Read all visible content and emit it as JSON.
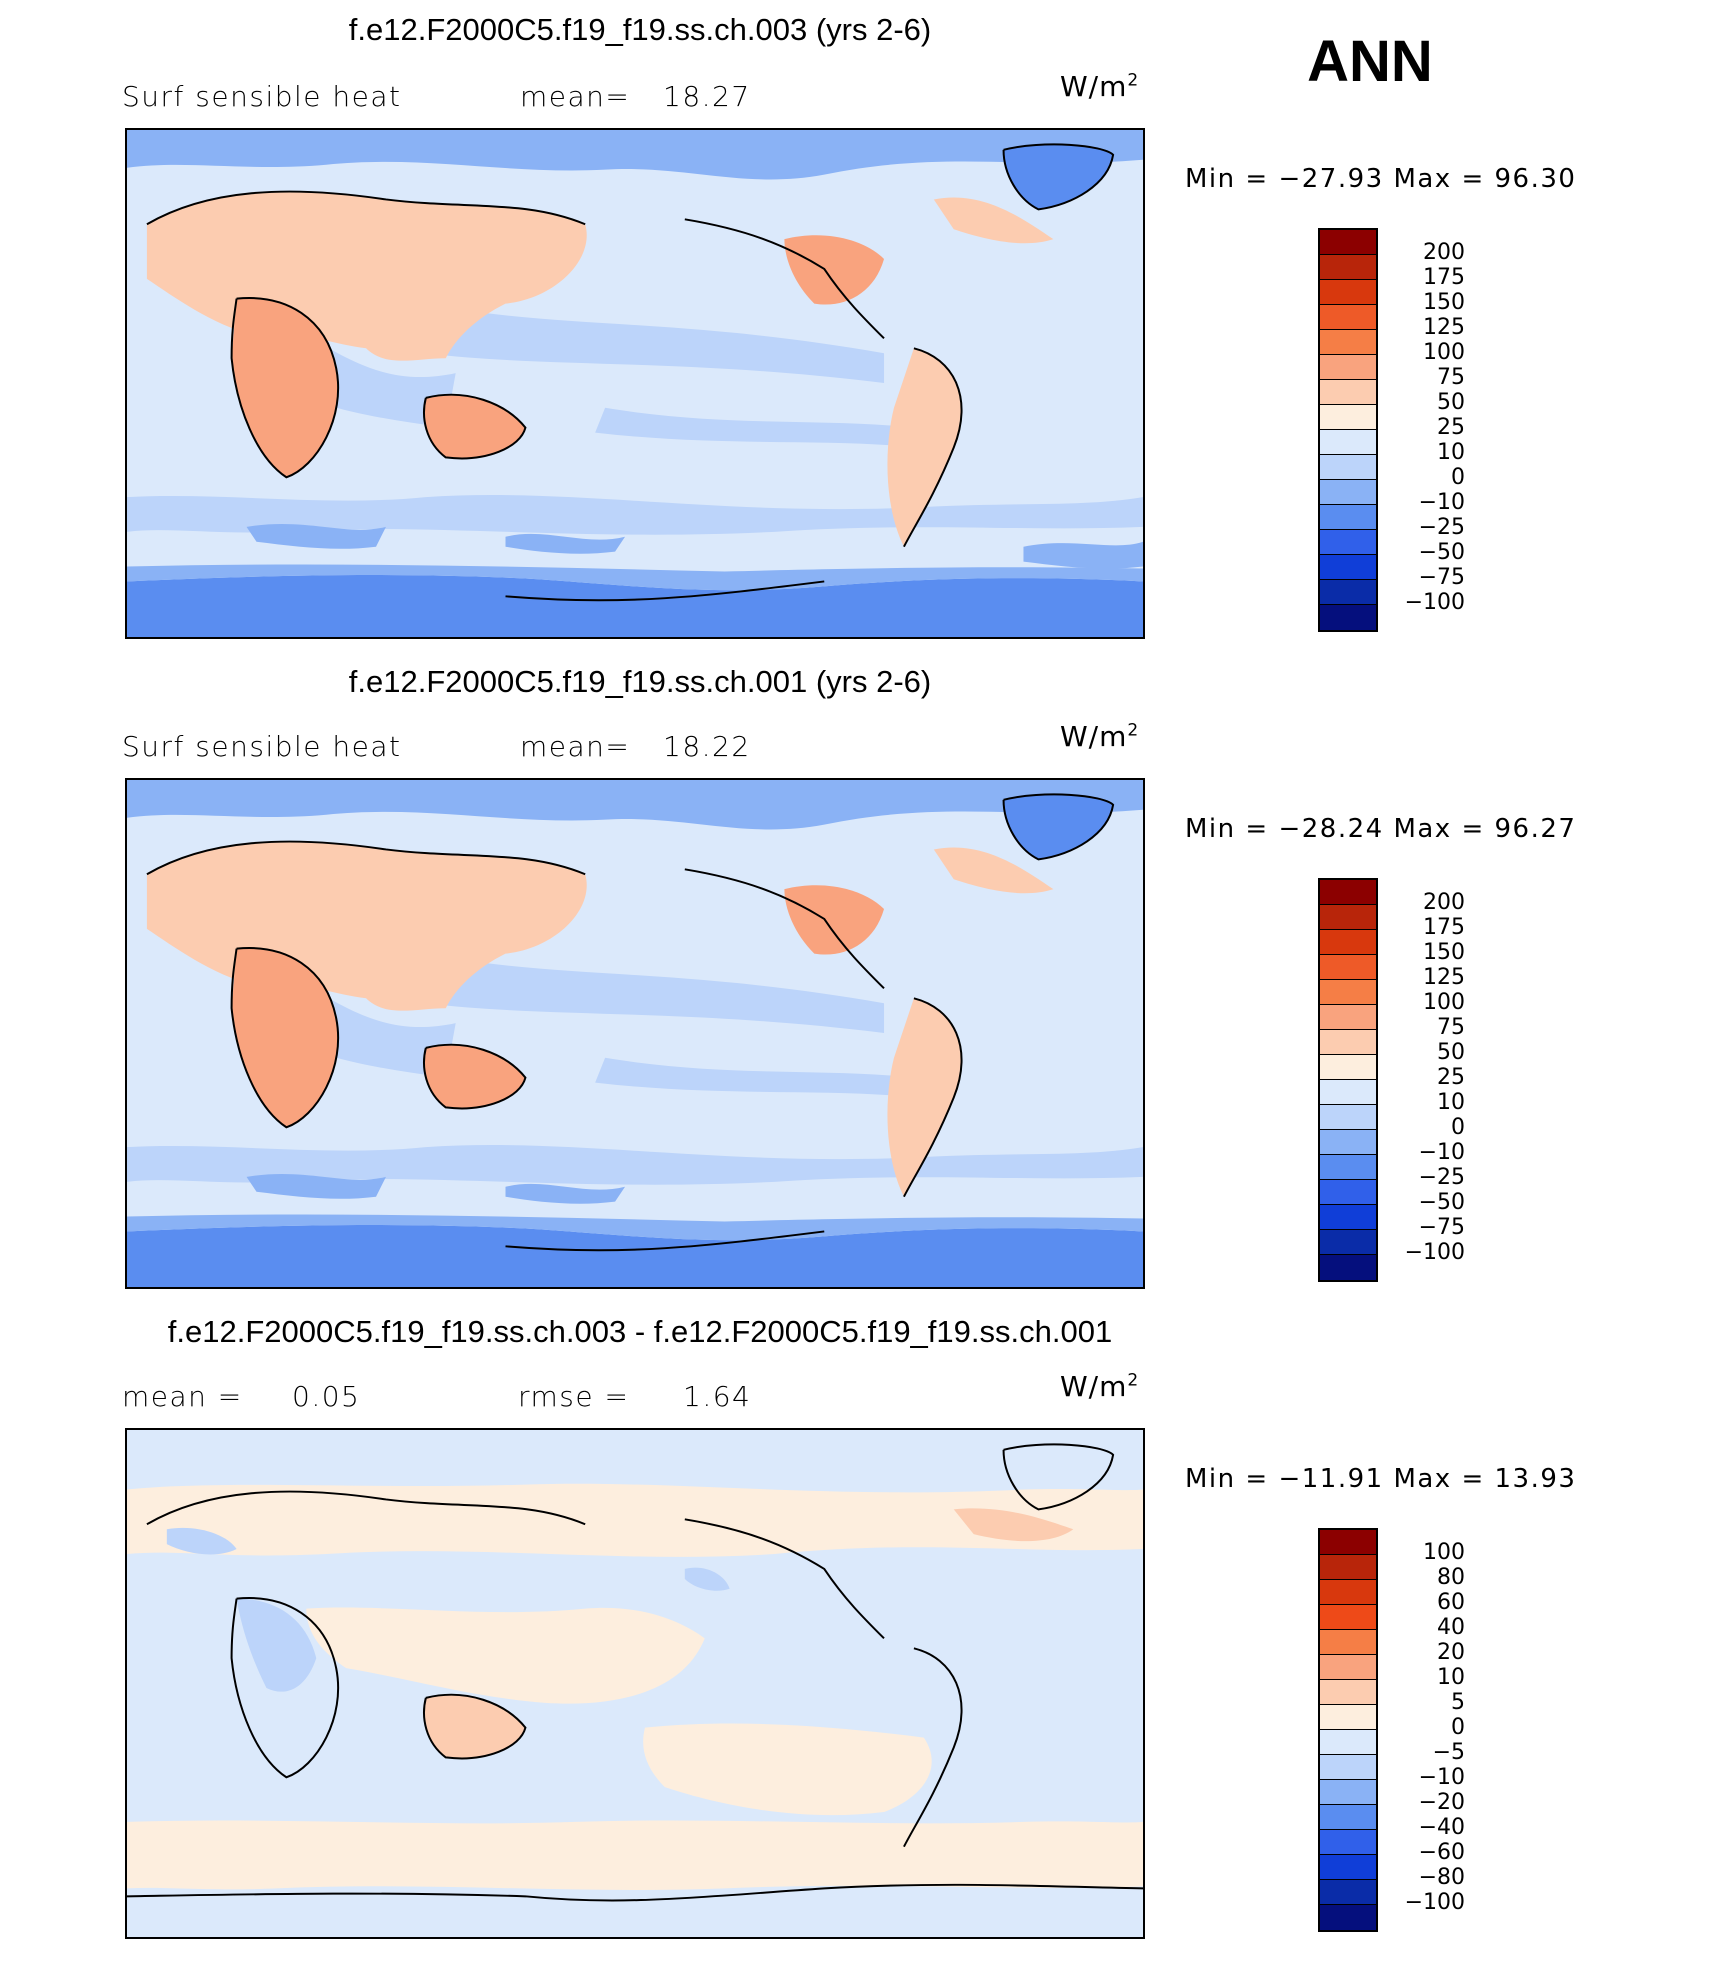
{
  "season": "ANN",
  "panels": [
    {
      "title": "f.e12.F2000C5.f19_f19.ss.ch.003 (yrs 2-6)",
      "left_label": "Surf  sensible  heat",
      "stat_label": "mean=",
      "stat_value": "18.27",
      "stat2_label": "",
      "stat2_value": "",
      "units": "W/m",
      "units_sup": "2",
      "min_label": "Min  =",
      "min_value": "−27.93",
      "max_label": "Max  =",
      "max_value": "96.30",
      "colorbar_levels": [
        "200",
        "175",
        "150",
        "125",
        "100",
        "75",
        "50",
        "25",
        "10",
        "0",
        "−10",
        "−25",
        "−50",
        "−75",
        "−100"
      ],
      "colorbar_colors": [
        "#8c0000",
        "#b8250a",
        "#d8380d",
        "#ee5a28",
        "#f57e46",
        "#f9a37e",
        "#fcccb0",
        "#fdeede",
        "#dbe9fb",
        "#bcd4fa",
        "#8ab2f5",
        "#5a8df0",
        "#3060ea",
        "#103ed8",
        "#0a2ca8",
        "#050f7d"
      ]
    },
    {
      "title": "f.e12.F2000C5.f19_f19.ss.ch.001 (yrs 2-6)",
      "left_label": "Surf  sensible  heat",
      "stat_label": "mean=",
      "stat_value": "18.22",
      "stat2_label": "",
      "stat2_value": "",
      "units": "W/m",
      "units_sup": "2",
      "min_label": "Min  =",
      "min_value": "−28.24",
      "max_label": "Max  =",
      "max_value": "96.27",
      "colorbar_levels": [
        "200",
        "175",
        "150",
        "125",
        "100",
        "75",
        "50",
        "25",
        "10",
        "0",
        "−10",
        "−25",
        "−50",
        "−75",
        "−100"
      ],
      "colorbar_colors": [
        "#8c0000",
        "#b8250a",
        "#d8380d",
        "#ee5a28",
        "#f57e46",
        "#f9a37e",
        "#fcccb0",
        "#fdeede",
        "#dbe9fb",
        "#bcd4fa",
        "#8ab2f5",
        "#5a8df0",
        "#3060ea",
        "#103ed8",
        "#0a2ca8",
        "#050f7d"
      ]
    },
    {
      "title": "f.e12.F2000C5.f19_f19.ss.ch.003 - f.e12.F2000C5.f19_f19.ss.ch.001",
      "left_label": "mean  =",
      "stat_label": "",
      "stat_value": "0.05",
      "stat2_label": "rmse  =",
      "stat2_value": "1.64",
      "units": "W/m",
      "units_sup": "2",
      "min_label": "Min  =",
      "min_value": "−11.91",
      "max_label": "Max  =",
      "max_value": "13.93",
      "colorbar_levels": [
        "100",
        "80",
        "60",
        "40",
        "20",
        "10",
        "5",
        "0",
        "−5",
        "−10",
        "−20",
        "−40",
        "−60",
        "−80",
        "−100"
      ],
      "colorbar_colors": [
        "#8c0000",
        "#b8250a",
        "#d8380d",
        "#ee4a18",
        "#f57e46",
        "#f9a37e",
        "#fcccb0",
        "#fdeede",
        "#dbe9fb",
        "#bcd4fa",
        "#8ab2f5",
        "#5a8df0",
        "#3060ea",
        "#103ed8",
        "#0a2ca8",
        "#050f7d"
      ]
    }
  ]
}
